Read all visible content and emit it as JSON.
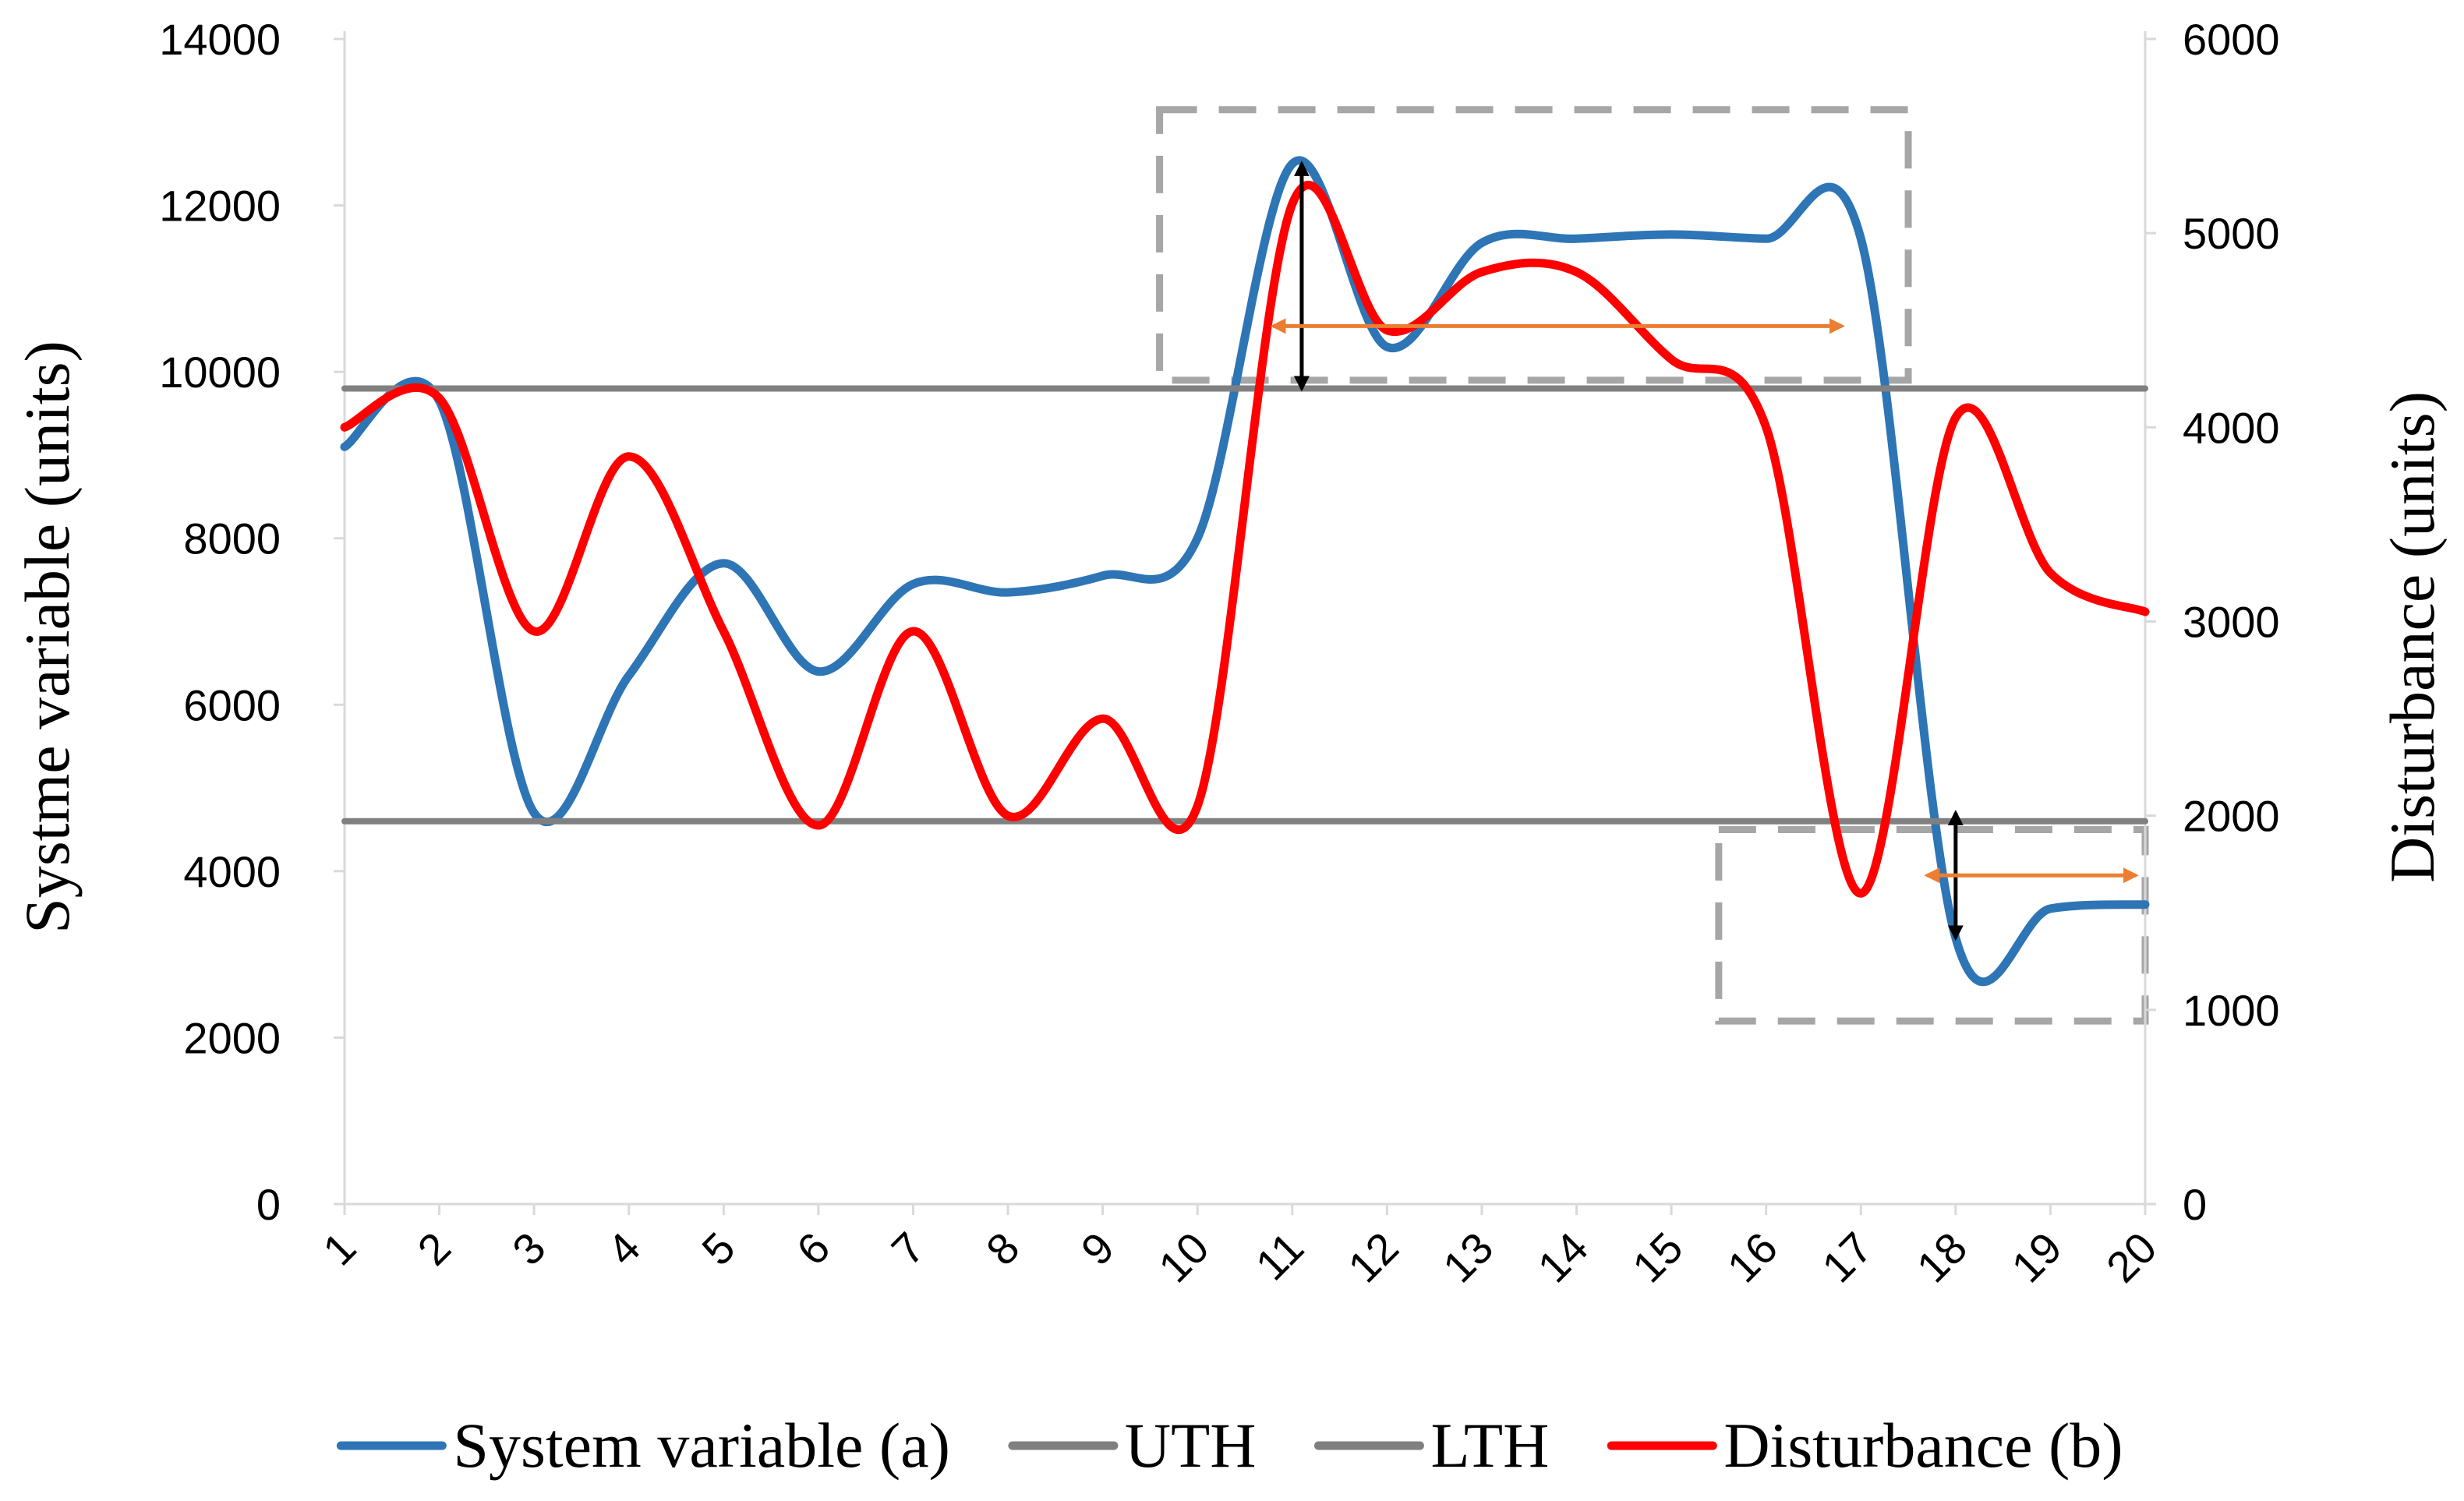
{
  "chart_data": {
    "type": "line",
    "x": [
      "1",
      "2",
      "3",
      "4",
      "5",
      "6",
      "7",
      "8",
      "9",
      "10",
      "11",
      "12",
      "13",
      "14",
      "15",
      "16",
      "17",
      "18",
      "19",
      "20"
    ],
    "ylabel": "Systme variable (units)",
    "y2label": "Disturbance  (units)",
    "ylim": [
      0,
      14000
    ],
    "y2lim": [
      0,
      6000
    ],
    "yticks": [
      "0",
      "2000",
      "4000",
      "6000",
      "8000",
      "10000",
      "12000",
      "14000"
    ],
    "y2ticks": [
      "0",
      "1000",
      "2000",
      "3000",
      "4000",
      "5000",
      "6000"
    ],
    "grid": false,
    "legend_position": "bottom",
    "series": [
      {
        "name": "System variable (a)",
        "axis": "left",
        "color": "#2E75B6",
        "values": [
          9100,
          9650,
          4700,
          6350,
          7700,
          6400,
          7450,
          7350,
          7550,
          8000,
          12500,
          10300,
          11550,
          11600,
          11650,
          11600,
          11600,
          3200,
          3550,
          3600
        ]
      },
      {
        "name": "UTH",
        "axis": "left",
        "color": "#808080",
        "values": [
          9800,
          9800,
          9800,
          9800,
          9800,
          9800,
          9800,
          9800,
          9800,
          9800,
          9800,
          9800,
          9800,
          9800,
          9800,
          9800,
          9800,
          9800,
          9800,
          9800
        ]
      },
      {
        "name": "LTH",
        "axis": "left",
        "color": "#808080",
        "values": [
          4600,
          4600,
          4600,
          4600,
          4600,
          4600,
          4600,
          4600,
          4600,
          4600,
          4600,
          4600,
          4600,
          4600,
          4600,
          4600,
          4600,
          4600,
          4600,
          4600
        ]
      },
      {
        "name": "Disturbance (b)",
        "axis": "right",
        "color": "#FF0000",
        "values": [
          4000,
          4150,
          2950,
          3850,
          2950,
          1950,
          2950,
          2000,
          2500,
          2050,
          5150,
          4500,
          4800,
          4800,
          4350,
          4000,
          1600,
          4050,
          3250,
          3050
        ]
      }
    ],
    "annotations": {
      "boxes": [
        {
          "x0": 9.6,
          "x1": 17.5,
          "y0": 9900,
          "y1": 13150,
          "color": "#A6A6A6"
        },
        {
          "x0": 15.5,
          "x1": 20.0,
          "y0": 2200,
          "y1": 4500,
          "color": "#A6A6A6"
        }
      ],
      "vertical_arrows": [
        {
          "x": 11.1,
          "y0": 9800,
          "y1": 12500,
          "color": "#000000"
        },
        {
          "x": 18.0,
          "y0": 3200,
          "y1": 4700,
          "color": "#000000"
        }
      ],
      "horizontal_arrows": [
        {
          "y": 10550,
          "x0": 10.8,
          "x1": 16.8,
          "color": "#ED7D31"
        },
        {
          "y": 3950,
          "x0": 17.7,
          "x1": 19.9,
          "color": "#ED7D31"
        }
      ]
    }
  }
}
